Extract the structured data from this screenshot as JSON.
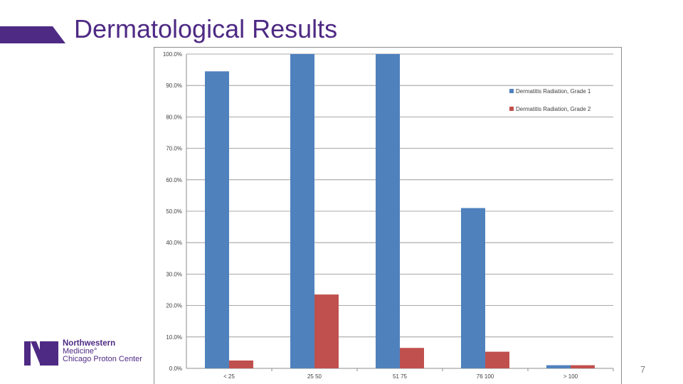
{
  "slide": {
    "title": "Dermatological Results",
    "page_number": "7"
  },
  "logo": {
    "line1": "Northwestern",
    "line2": "Medicine°",
    "line3": "Chicago Proton Center"
  },
  "colors": {
    "brand_purple": "#4e2a84",
    "grade1": "#4f81bd",
    "grade2": "#c0504d"
  },
  "chart_data": {
    "type": "bar",
    "categories": [
      "< 25",
      "25 50",
      "51 75",
      "76 100",
      "> 100"
    ],
    "series": [
      {
        "name": "Dermatitis Radiation, Grade 1",
        "values": [
          94.5,
          100.0,
          100.0,
          51.0,
          1.0
        ],
        "color": "#4f81bd"
      },
      {
        "name": "Dermatitis Radiation, Grade 2",
        "values": [
          2.5,
          23.5,
          6.5,
          5.3,
          1.0
        ],
        "color": "#c0504d"
      }
    ],
    "ylim": [
      0,
      100
    ],
    "yticks": [
      "0.0%",
      "10.0%",
      "20.0%",
      "30.0%",
      "40.0%",
      "50.0%",
      "60.0%",
      "70.0%",
      "80.0%",
      "90.0%",
      "100.0%"
    ],
    "grid": true,
    "legend_position": "top-right",
    "title": "",
    "xlabel": "",
    "ylabel": ""
  }
}
